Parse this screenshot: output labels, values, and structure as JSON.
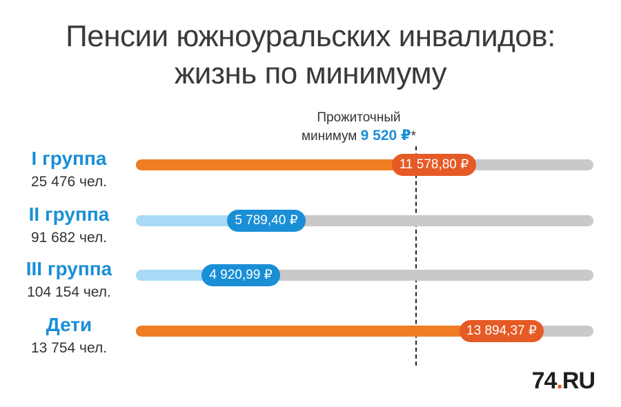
{
  "title_line1": "Пенсии южноуральских инвалидов:",
  "title_line2": "жизнь по минимуму",
  "minimum": {
    "label_line1": "Прожиточный",
    "label_prefix": "минимум",
    "value_text": "9 520 ₽",
    "asterisk": "*",
    "value": 9520
  },
  "logo": {
    "number": "74",
    "dot": ".",
    "tld": "RU"
  },
  "colors": {
    "above_fill": "#ef7d22",
    "above_pill": "#e55a25",
    "below_fill": "#a8daf7",
    "below_pill": "#1a8fd6",
    "track": "#c9c9c9",
    "group_text": "#1a8fd6"
  },
  "chart_data": {
    "type": "bar",
    "categories": [
      "I группа",
      "II группа",
      "III группа",
      "Дети"
    ],
    "counts": [
      "25 476 чел.",
      "91 682 чел.",
      "104 154 чел.",
      "13 754 чел."
    ],
    "values": [
      11578.8,
      5789.4,
      4920.99,
      13894.37
    ],
    "value_labels": [
      "11 578,80 ₽",
      "5 789,40 ₽",
      "4 920,99 ₽",
      "13 894,37 ₽"
    ],
    "reference_line": 9520,
    "xlim": [
      0,
      15580
    ]
  }
}
